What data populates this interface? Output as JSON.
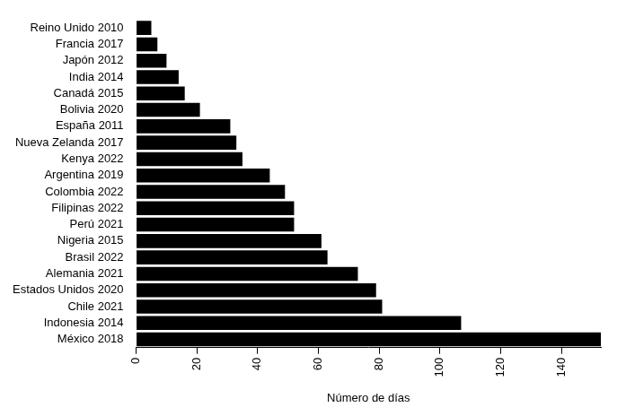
{
  "chart_data": {
    "type": "bar",
    "orientation": "horizontal",
    "x_label": "Número de días",
    "categories": [
      "Reino Unido 2010",
      "Francia 2017",
      "Japón 2012",
      "India 2014",
      "Canadá 2015",
      "Bolivia 2020",
      "España 2011",
      "Nueva Zelanda 2017",
      "Kenya 2022",
      "Argentina 2019",
      "Colombia 2022",
      "Filipinas 2022",
      "Perú 2021",
      "Nigeria 2015",
      "Brasil 2022",
      "Alemania 2021",
      "Estados Unidos 2020",
      "Chile 2021",
      "Indonesia 2014",
      "México 2018"
    ],
    "values": [
      5,
      7,
      10,
      14,
      16,
      21,
      31,
      33,
      35,
      44,
      49,
      52,
      52,
      61,
      63,
      73,
      79,
      81,
      107,
      153
    ],
    "color": "#000000",
    "xlim": [
      0,
      153
    ],
    "xticks": [
      0,
      20,
      40,
      60,
      80,
      100,
      120,
      140
    ],
    "grid": false
  }
}
